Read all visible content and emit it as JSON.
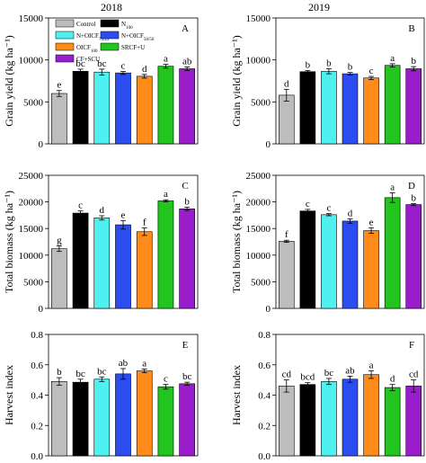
{
  "figure": {
    "years": [
      "2018",
      "2019"
    ],
    "panel_letters": [
      "A",
      "B",
      "C",
      "D",
      "E",
      "F"
    ]
  },
  "legend": {
    "entries": [
      {
        "text": "Control",
        "sub": "",
        "color": "#bdbdbd"
      },
      {
        "text": "N",
        "sub": "100",
        "color": "#000000"
      },
      {
        "text": "N+OICF",
        "sub": "75/25",
        "color": "#4ef0f0"
      },
      {
        "text": "N+OICF",
        "sub": "50/50",
        "color": "#2b4df0"
      },
      {
        "text": "OICF",
        "sub": "100",
        "color": "#ff8c1a"
      },
      {
        "text": "SRCF+U",
        "sub": "",
        "color": "#22c41e"
      },
      {
        "text": "CF+SCU",
        "sub": "",
        "color": "#9a1dcc"
      }
    ]
  },
  "chart_data": [
    {
      "type": "bar",
      "panel": "A",
      "year": "2018",
      "ylabel": "Grain yield (kg ha⁻¹)",
      "ylim": [
        0,
        15000
      ],
      "yticks": [
        0,
        5000,
        10000,
        15000
      ],
      "values": [
        6000,
        8650,
        8550,
        8450,
        8050,
        9250,
        8950
      ],
      "errors": [
        350,
        250,
        350,
        180,
        220,
        230,
        220
      ],
      "letters": [
        "e",
        "bc",
        "bc",
        "c",
        "d",
        "a",
        "ab"
      ]
    },
    {
      "type": "bar",
      "panel": "B",
      "year": "2019",
      "ylabel": "Grain yield (kg ha⁻¹)",
      "ylim": [
        0,
        15000
      ],
      "yticks": [
        0,
        5000,
        10000,
        15000
      ],
      "values": [
        5800,
        8600,
        8650,
        8350,
        7850,
        9350,
        8950
      ],
      "errors": [
        700,
        150,
        300,
        150,
        180,
        200,
        250
      ],
      "letters": [
        "d",
        "b",
        "b",
        "b",
        "c",
        "a",
        "b"
      ]
    },
    {
      "type": "bar",
      "panel": "C",
      "year": "2018",
      "ylabel": "Total biomass (kg ha⁻¹)",
      "ylim": [
        0,
        25000
      ],
      "yticks": [
        0,
        5000,
        10000,
        15000,
        20000,
        25000
      ],
      "values": [
        11200,
        17900,
        17000,
        15700,
        14400,
        20200,
        18700
      ],
      "errors": [
        500,
        400,
        400,
        800,
        700,
        200,
        300
      ],
      "letters": [
        "g",
        "c",
        "d",
        "e",
        "f",
        "a",
        "b"
      ]
    },
    {
      "type": "bar",
      "panel": "D",
      "year": "2019",
      "ylabel": "Total biomass (kg ha⁻¹)",
      "ylim": [
        0,
        25000
      ],
      "yticks": [
        0,
        5000,
        10000,
        15000,
        20000,
        25000
      ],
      "values": [
        12600,
        18300,
        17600,
        16400,
        14600,
        20800,
        19500
      ],
      "errors": [
        200,
        300,
        200,
        400,
        500,
        900,
        200
      ],
      "letters": [
        "f",
        "c",
        "c",
        "d",
        "e",
        "a",
        "b"
      ]
    },
    {
      "type": "bar",
      "panel": "E",
      "year": "2018",
      "ylabel": "Harvest index",
      "ylim": [
        0,
        0.8
      ],
      "yticks": [
        "0.0",
        "0.2",
        "0.4",
        "0.6",
        "0.8"
      ],
      "values": [
        0.49,
        0.485,
        0.505,
        0.54,
        0.56,
        0.455,
        0.475
      ],
      "errors": [
        0.025,
        0.02,
        0.015,
        0.035,
        0.012,
        0.015,
        0.01
      ],
      "letters": [
        "b",
        "bc",
        "bc",
        "ab",
        "a",
        "c",
        "bc"
      ]
    },
    {
      "type": "bar",
      "panel": "F",
      "year": "2019",
      "ylabel": "Harvest index",
      "ylim": [
        0,
        0.8
      ],
      "yticks": [
        "0.0",
        "0.2",
        "0.4",
        "0.6",
        "0.8"
      ],
      "values": [
        0.46,
        0.47,
        0.49,
        0.505,
        0.535,
        0.45,
        0.46
      ],
      "errors": [
        0.04,
        0.012,
        0.02,
        0.02,
        0.025,
        0.02,
        0.04
      ],
      "letters": [
        "cd",
        "bcd",
        "bc",
        "ab",
        "a",
        "d",
        "cd"
      ]
    }
  ]
}
